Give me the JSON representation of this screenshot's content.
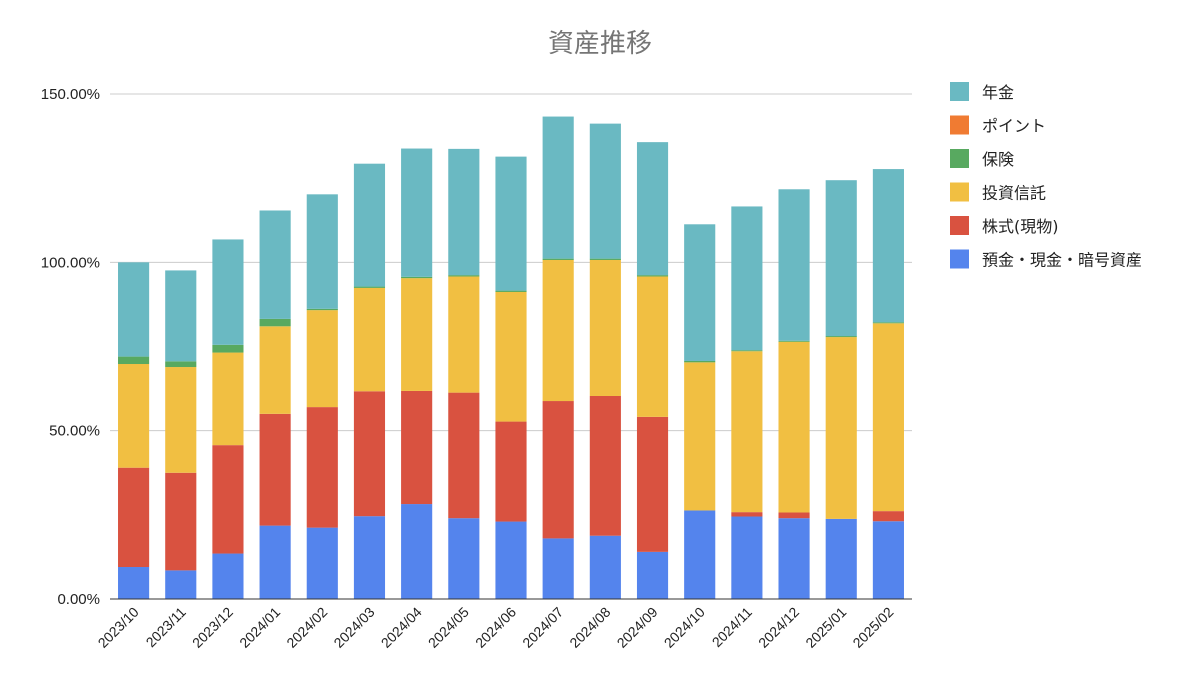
{
  "chart_data": {
    "type": "bar",
    "stacked": true,
    "title": "資産推移",
    "xlabel": "",
    "ylabel": "",
    "ylim": [
      0,
      150
    ],
    "yticks": [
      "0.00%",
      "50.00%",
      "100.00%",
      "150.00%"
    ],
    "ytick_values": [
      0,
      50,
      100,
      150
    ],
    "grid": true,
    "legend_position": "right",
    "categories": [
      "2023/10",
      "2023/11",
      "2023/12",
      "2024/01",
      "2024/02",
      "2024/03",
      "2024/04",
      "2024/05",
      "2024/06",
      "2024/07",
      "2024/08",
      "2024/09",
      "2024/10",
      "2024/11",
      "2024/12",
      "2025/01",
      "2025/02"
    ],
    "series": [
      {
        "name": "預金・現金・暗号資産",
        "color": "#5484ed",
        "values": [
          9.5,
          8.5,
          13.5,
          21.8,
          21.2,
          24.6,
          28.2,
          24.0,
          23.0,
          18.0,
          18.8,
          14.0,
          26.3,
          24.5,
          24.0,
          23.8,
          23.1
        ]
      },
      {
        "name": "株式(現物)",
        "color": "#d95240",
        "values": [
          29.5,
          29.0,
          32.2,
          33.2,
          35.8,
          37.1,
          33.6,
          37.3,
          29.7,
          40.8,
          41.5,
          40.1,
          0.0,
          1.3,
          1.7,
          0.0,
          3.0
        ]
      },
      {
        "name": "投資信託",
        "color": "#f1bf42",
        "values": [
          30.8,
          31.4,
          27.5,
          26.0,
          28.8,
          30.7,
          33.5,
          34.5,
          38.5,
          41.9,
          40.4,
          41.7,
          44.0,
          47.8,
          50.7,
          54.0,
          55.8
        ]
      },
      {
        "name": "保険",
        "color": "#58a960",
        "values": [
          2.2,
          1.7,
          2.3,
          2.2,
          0.4,
          0.4,
          0.4,
          0.4,
          0.4,
          0.4,
          0.4,
          0.4,
          0.4,
          0.3,
          0.3,
          0.3,
          0.3
        ]
      },
      {
        "name": "ポイント",
        "color": "#f07b32",
        "values": [
          0,
          0,
          0,
          0,
          0,
          0,
          0,
          0,
          0,
          0,
          0,
          0,
          0,
          0,
          0,
          0,
          0
        ]
      },
      {
        "name": "年金",
        "color": "#6ab9c2",
        "values": [
          28.0,
          27.0,
          31.3,
          32.2,
          34.0,
          36.5,
          38.1,
          37.5,
          39.8,
          42.2,
          40.1,
          39.5,
          40.6,
          42.7,
          45.0,
          46.3,
          45.5
        ]
      }
    ]
  }
}
